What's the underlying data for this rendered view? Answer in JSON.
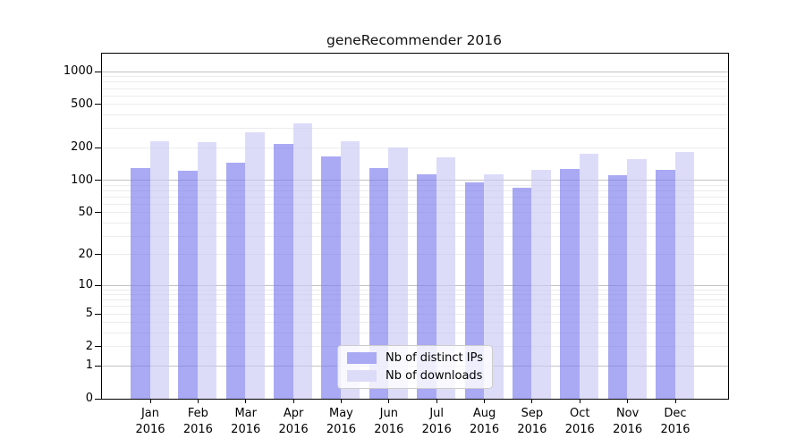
{
  "chart_data": {
    "type": "bar",
    "title": "geneRecommender 2016",
    "months": [
      "Jan",
      "Feb",
      "Mar",
      "Apr",
      "May",
      "Jun",
      "Jul",
      "Aug",
      "Sep",
      "Oct",
      "Nov",
      "Dec"
    ],
    "year": "2016",
    "series": [
      {
        "name": "Nb of distinct IPs",
        "color": "rgba(123,123,238,0.65)",
        "solid_color": "#a9a9f4",
        "values": [
          130,
          123,
          144,
          216,
          166,
          130,
          114,
          96,
          85,
          128,
          111,
          125
        ]
      },
      {
        "name": "Nb of downloads",
        "color": "rgba(201,201,246,0.65)",
        "solid_color": "#dcdcf8",
        "values": [
          230,
          226,
          278,
          336,
          231,
          202,
          162,
          114,
          125,
          177,
          156,
          184
        ]
      }
    ],
    "y_axis": {
      "scale": "log10(v+1)",
      "ticks": [
        0,
        1,
        2,
        5,
        10,
        20,
        50,
        100,
        200,
        500,
        1000
      ],
      "major_gridlines": [
        1,
        10,
        100,
        1000
      ],
      "minor_gridlines": [
        2,
        3,
        4,
        5,
        6,
        7,
        8,
        9,
        20,
        30,
        40,
        50,
        60,
        70,
        80,
        90,
        200,
        300,
        400,
        500,
        600,
        700,
        800,
        900
      ],
      "top_value": 1464,
      "min": 0
    },
    "grid": true,
    "legend_position": "lower center"
  },
  "colors": {
    "major_grid": "#c3c3c3",
    "minor_grid": "#ececec",
    "spine": "#000000",
    "background": "#ffffff"
  }
}
